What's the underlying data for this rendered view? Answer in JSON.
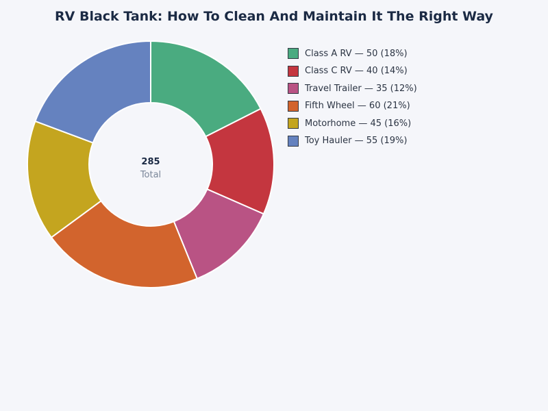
{
  "chart_data": {
    "type": "pie",
    "style": "donut",
    "title": "RV Black Tank: How To Clean And Maintain It The Right Way",
    "categories": [
      "Class A RV",
      "Class C RV",
      "Travel Trailer",
      "Fifth Wheel",
      "Motorhome",
      "Toy Hauler"
    ],
    "values": [
      50,
      40,
      35,
      60,
      45,
      55
    ],
    "colors": [
      "#4aab80",
      "#c4363f",
      "#b95384",
      "#d2642d",
      "#c4a51f",
      "#6582bf"
    ],
    "legend_labels": [
      "Class A RV — 50 (18%)",
      "Class C RV — 40 (14%)",
      "Travel Trailer — 35 (12%)",
      "Fifth Wheel — 60 (21%)",
      "Motorhome — 45 (16%)",
      "Toy Hauler — 55 (19%)"
    ],
    "center_value": "285",
    "center_label": "Total",
    "legend_position": "top-right"
  }
}
